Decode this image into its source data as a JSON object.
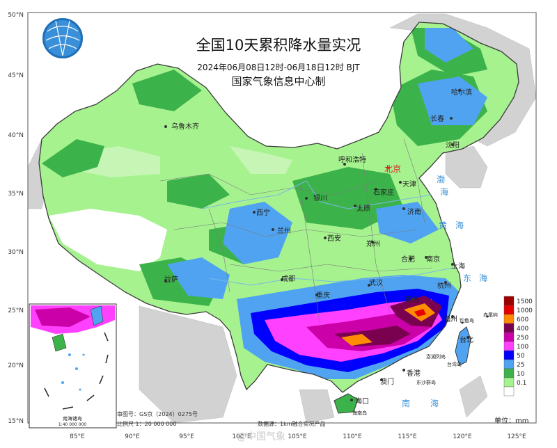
{
  "title": "全国10天累积降水量实况",
  "subtitle": "2024年06月08日12时-06月18日12时 BJT",
  "producer": "国家气象信息中心制",
  "lat_labels": [
    "50°N",
    "45°N",
    "40°N",
    "35°N",
    "30°N",
    "25°N",
    "20°N",
    "15°N"
  ],
  "lon_labels": [
    "85°E",
    "90°E",
    "95°E",
    "100°E",
    "105°E",
    "110°E",
    "115°E",
    "120°E",
    "125°E"
  ],
  "cities": {
    "urumqi": "乌鲁木齐",
    "harbin": "哈尔滨",
    "changchun": "长春",
    "shenyang": "沈阳",
    "hohhot": "呼和浩特",
    "beijing": "北京",
    "tianjin": "天津",
    "shijiazhuang": "石家庄",
    "yinchuan": "银川",
    "taiyuan": "太原",
    "jinan": "济南",
    "xining": "西宁",
    "lanzhou": "兰州",
    "xian": "西安",
    "zhengzhou": "郑州",
    "hefei": "合肥",
    "nanjing": "南京",
    "shanghai": "上海",
    "lhasa": "拉萨",
    "chengdu": "成都",
    "wuhan": "武汉",
    "chongqing": "重庆",
    "hangzhou": "杭州",
    "nanchang": "南昌",
    "fuzhou": "福州",
    "taipei": "台北",
    "hongkong": "香港",
    "macau": "澳门",
    "haikou": "海口",
    "diaoyu": "钓鱼岛",
    "chiwei": "赤尾屿",
    "penghu": "澎湖列岛",
    "taiwan": "台湾岛",
    "dongsha": "东沙群岛",
    "hainan": "海南岛"
  },
  "seas": {
    "bohai_1": "渤",
    "bohai_2": "海",
    "yellow_1": "黄",
    "yellow_2": "海",
    "east_1": "东",
    "east_2": "海",
    "south_1": "南",
    "south_2": "海"
  },
  "inset": {
    "title": "南海诸岛",
    "scale": "1:40 000 000"
  },
  "map_number": "审图号：GS京（2024）0275号",
  "scale_text": "比例尺 1：20 000 000",
  "data_source": "数据源：1km融合实况产品",
  "unit_label": "单位：mm",
  "watermark": "@中国气象",
  "legend": [
    {
      "label": "1500",
      "color": "#9b0000"
    },
    {
      "label": "1000",
      "color": "#e60000"
    },
    {
      "label": "600",
      "color": "#ff8c00"
    },
    {
      "label": "400",
      "color": "#7a0050"
    },
    {
      "label": "250",
      "color": "#cc00a8"
    },
    {
      "label": "100",
      "color": "#ff40ff"
    },
    {
      "label": "50",
      "color": "#0000ff"
    },
    {
      "label": "25",
      "color": "#4fa3f0"
    },
    {
      "label": "10",
      "color": "#3cb34a"
    },
    {
      "label": "0.1",
      "color": "#a6f28f"
    }
  ]
}
